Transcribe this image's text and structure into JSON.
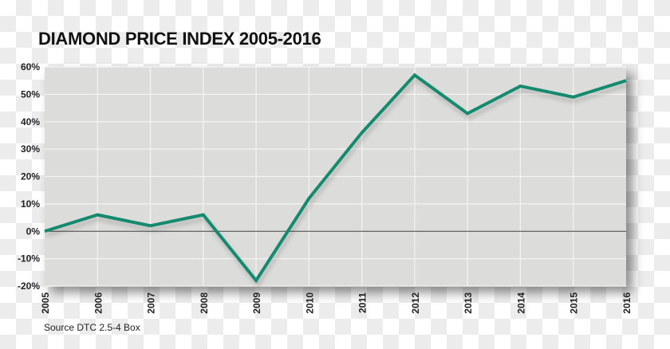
{
  "chart_data": {
    "type": "line",
    "title": "DIAMOND PRICE INDEX 2005-2016",
    "xlabel": "",
    "ylabel": "",
    "categories": [
      "2005",
      "2006",
      "2007",
      "2008",
      "2009",
      "2010",
      "2011",
      "2012",
      "2013",
      "2014",
      "2015",
      "2016"
    ],
    "series": [
      {
        "name": "Diamond Price Index",
        "values": [
          0,
          6,
          2,
          6,
          -18,
          12,
          36,
          57,
          43,
          53,
          49,
          55
        ]
      }
    ],
    "ylim": [
      -20,
      60
    ],
    "yticks": [
      -20,
      -10,
      0,
      10,
      20,
      30,
      40,
      50,
      60
    ],
    "ytick_labels": [
      "-20%",
      "-10%",
      "0%",
      "10%",
      "20%",
      "30%",
      "40%",
      "50%",
      "60%"
    ],
    "grid": true,
    "source": "Source DTC 2.5-4 Box",
    "colors": {
      "line": "#138a6e",
      "plot_bg": "#dcdddb",
      "grid": "#f4f4f2"
    }
  }
}
